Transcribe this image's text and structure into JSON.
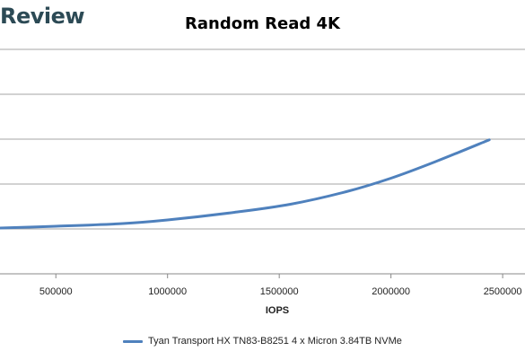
{
  "brand": {
    "text": "Review"
  },
  "chart_data": {
    "type": "line",
    "title": "Random Read 4K",
    "xlabel": "IOPS",
    "ylabel": "",
    "xlim": [
      250000,
      2600000
    ],
    "ylim": [
      0,
      1.0
    ],
    "x_ticks": [
      "500000",
      "1000000",
      "1500000",
      "2000000",
      "2500000"
    ],
    "grid": true,
    "legend_position": "bottom",
    "series": [
      {
        "name": "Tyan Transport HX TN83-B8251 4 x Micron 3.84TB NVMe",
        "color": "#4f81bd",
        "x": [
          250000,
          500000,
          800000,
          1000000,
          1300000,
          1550000,
          1800000,
          2000000,
          2200000,
          2440000
        ],
        "y": [
          0.204,
          0.212,
          0.224,
          0.24,
          0.274,
          0.31,
          0.366,
          0.426,
          0.5,
          0.597
        ]
      }
    ]
  }
}
